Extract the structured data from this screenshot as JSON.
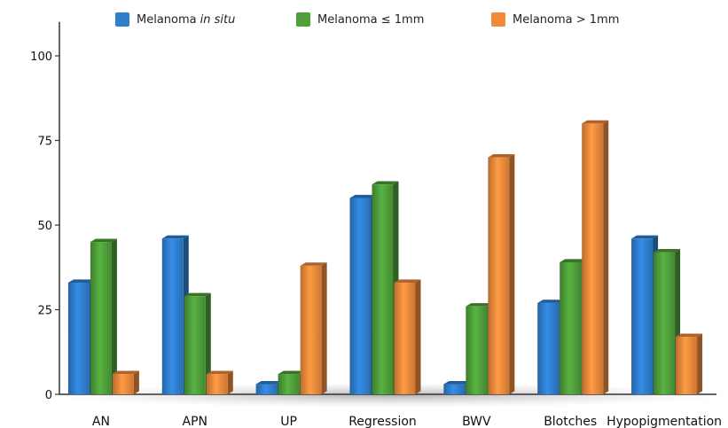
{
  "chart_data": {
    "type": "bar",
    "categories": [
      "AN",
      "APN",
      "UP",
      "Regression",
      "BWV",
      "Blotches",
      "Hypopigmentation"
    ],
    "series": [
      {
        "name": "Melanoma in situ",
        "name_main": "Melanoma",
        "name_em": "in situ",
        "color": "#2f7fcf",
        "values": [
          33,
          46,
          3,
          58,
          3,
          27,
          46
        ]
      },
      {
        "name": "Melanoma ≤ 1mm",
        "name_main": "Melanoma ≤ 1mm",
        "name_em": "",
        "color": "#4fa03a",
        "values": [
          45,
          29,
          6,
          62,
          26,
          39,
          42
        ]
      },
      {
        "name": "Melanoma > 1mm",
        "name_main": "Melanoma > 1mm",
        "name_em": "",
        "color": "#f08a3c",
        "values": [
          6,
          6,
          38,
          33,
          70,
          80,
          17
        ]
      }
    ],
    "y_ticks": [
      0,
      25,
      50,
      75,
      100
    ],
    "ylim": [
      0,
      110
    ],
    "legend_position": "top",
    "grid": false
  }
}
